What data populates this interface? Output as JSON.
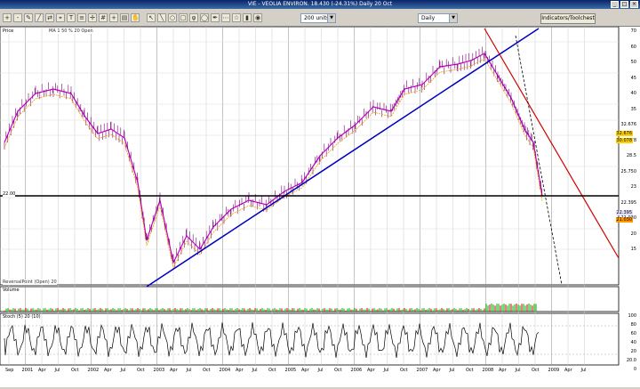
{
  "window": {
    "title": "VIE - VEOLIA ENVIRON.  18.430 (-24.31%)  Daily 20 Oct"
  },
  "toolbar": {
    "icons": [
      "zoom-in-icon",
      "zoom-out-icon",
      "pencil-icon",
      "line-icon",
      "arrows-icon",
      "fan-icon",
      "text-icon",
      "channel-icon",
      "crosshair-icon",
      "grid-icon",
      "plus-icon",
      "chart-icon",
      "hand-icon",
      "cursor-icon",
      "line2-icon",
      "ellipse-icon",
      "rectangle-icon",
      "fib-icon",
      "circle-icon",
      "pen-icon",
      "dots-icon",
      "star-icon",
      "bars-icon",
      "eye-icon"
    ],
    "units_value": "200 units",
    "period_value": "Daily",
    "indicators_label": "Indicators/Toolchest"
  },
  "panes": {
    "price": {
      "label": "Price",
      "sublabel": "MA 1 50 % 20 Open"
    },
    "volume": {
      "label": "Volume"
    },
    "stoch": {
      "label": "Stoch (5) 20 (10)"
    },
    "price_note": "ReversalPoint (Open) 20"
  },
  "price_axis": [
    "70",
    "60",
    "50",
    "45",
    "40",
    "35",
    "32.676",
    "30.078",
    "28.5",
    "25.750",
    "23",
    "22.395",
    "21.030",
    "20",
    "15"
  ],
  "current_tags": {
    "top": "32.676",
    "mid": "30.078",
    "orange": "21.030",
    "blue": "22.395"
  },
  "hline_label": "22.00",
  "volume_axis": [
    "40M",
    "20M",
    "10.9M"
  ],
  "stoch_axis": [
    "100",
    "80",
    "60",
    "40",
    "20",
    "20.0",
    "0"
  ],
  "x_axis": [
    "Sep",
    "2001",
    "Apr",
    "Jul",
    "Oct",
    "2002",
    "Apr",
    "Jul",
    "Oct",
    "2003",
    "Apr",
    "Jul",
    "Oct",
    "2004",
    "Apr",
    "Jul",
    "Oct",
    "2005",
    "Apr",
    "Jul",
    "Oct",
    "2006",
    "Apr",
    "Jul",
    "Oct",
    "2007",
    "Apr",
    "Jul",
    "Oct",
    "2008",
    "Apr",
    "Jul",
    "Oct",
    "2009",
    "Apr",
    "Jul"
  ],
  "colors": {
    "price_bars": "#c000c0",
    "ma": "#e8a000",
    "uptrend": "#0000c0",
    "downtrend": "#d00000",
    "hline": "#000000"
  }
}
